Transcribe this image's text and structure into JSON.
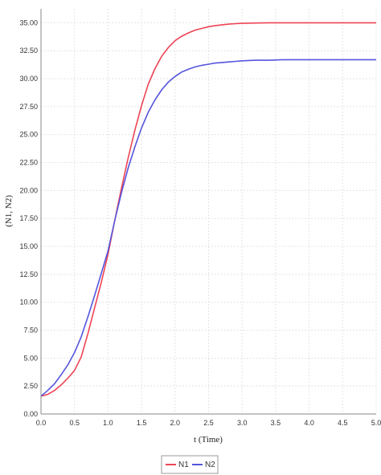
{
  "chart_data": {
    "type": "line",
    "xlabel": "t (Time)",
    "ylabel": "(N1, N2)",
    "xlim": [
      0,
      5
    ],
    "ylim": [
      0,
      36.25
    ],
    "x_ticks": [
      "0.0",
      "0.5",
      "1.0",
      "1.5",
      "2.0",
      "2.5",
      "3.0",
      "3.5",
      "4.0",
      "4.5",
      "5.0"
    ],
    "y_ticks": [
      "0.00",
      "2.50",
      "5.00",
      "7.50",
      "10.00",
      "12.50",
      "15.00",
      "17.50",
      "20.00",
      "22.50",
      "25.00",
      "27.50",
      "30.00",
      "32.50",
      "35.00"
    ],
    "grid": true,
    "legend_position": "bottom-center",
    "series": [
      {
        "name": "N1",
        "color": "#ee4455",
        "x": [
          0,
          0.1,
          0.2,
          0.3,
          0.4,
          0.5,
          0.6,
          0.7,
          0.8,
          0.9,
          1.0,
          1.1,
          1.2,
          1.3,
          1.4,
          1.5,
          1.6,
          1.7,
          1.8,
          1.9,
          2.0,
          2.1,
          2.2,
          2.3,
          2.4,
          2.5,
          2.6,
          2.7,
          2.8,
          2.9,
          3.0,
          3.2,
          3.4,
          3.6,
          3.8,
          4.0,
          4.5,
          5.0
        ],
        "y": [
          1.6,
          1.75,
          2.1,
          2.6,
          3.2,
          3.9,
          5.1,
          7.2,
          9.5,
          11.8,
          14.3,
          17.3,
          20.2,
          22.9,
          25.4,
          27.6,
          29.5,
          30.9,
          32.0,
          32.8,
          33.4,
          33.8,
          34.1,
          34.35,
          34.5,
          34.65,
          34.75,
          34.82,
          34.88,
          34.92,
          34.95,
          34.98,
          35.0,
          35.0,
          35.0,
          35.0,
          35.0,
          35.0
        ]
      },
      {
        "name": "N2",
        "color": "#5555dd",
        "x": [
          0,
          0.1,
          0.2,
          0.3,
          0.4,
          0.5,
          0.6,
          0.7,
          0.8,
          0.9,
          1.0,
          1.1,
          1.2,
          1.3,
          1.4,
          1.5,
          1.6,
          1.7,
          1.8,
          1.9,
          2.0,
          2.1,
          2.2,
          2.3,
          2.4,
          2.5,
          2.6,
          2.7,
          2.8,
          2.9,
          3.0,
          3.2,
          3.4,
          3.6,
          3.8,
          4.0,
          4.5,
          5.0
        ],
        "y": [
          1.6,
          2.1,
          2.7,
          3.5,
          4.4,
          5.5,
          6.9,
          8.7,
          10.6,
          12.6,
          14.6,
          17.3,
          19.8,
          22.0,
          23.9,
          25.6,
          27.0,
          28.1,
          29.0,
          29.7,
          30.2,
          30.6,
          30.85,
          31.05,
          31.2,
          31.3,
          31.4,
          31.45,
          31.5,
          31.55,
          31.6,
          31.65,
          31.65,
          31.7,
          31.7,
          31.7,
          31.7,
          31.7
        ]
      }
    ]
  }
}
